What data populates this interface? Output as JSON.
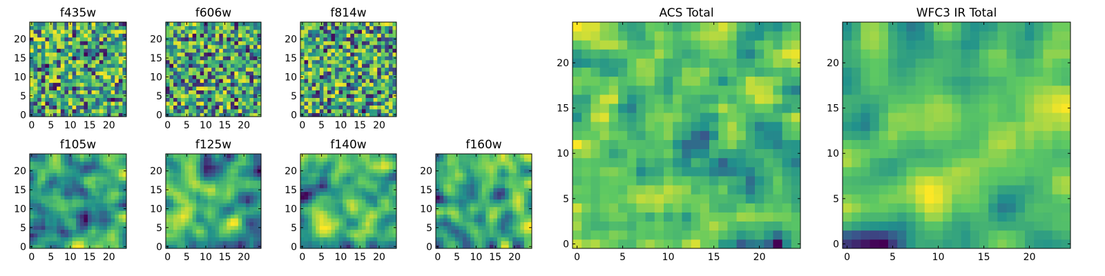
{
  "chart_data": [
    {
      "type": "heatmap",
      "title": "f435w",
      "nx": 25,
      "ny": 25,
      "xticks": [
        0,
        5,
        10,
        15,
        20
      ],
      "yticks": [
        0,
        5,
        10,
        15,
        20
      ],
      "smooth": 0.0,
      "seed": 11
    },
    {
      "type": "heatmap",
      "title": "f606w",
      "nx": 25,
      "ny": 25,
      "xticks": [
        0,
        5,
        10,
        15,
        20
      ],
      "yticks": [
        0,
        5,
        10,
        15,
        20
      ],
      "smooth": 0.0,
      "seed": 23
    },
    {
      "type": "heatmap",
      "title": "f814w",
      "nx": 25,
      "ny": 25,
      "xticks": [
        0,
        5,
        10,
        15,
        20
      ],
      "yticks": [
        0,
        5,
        10,
        15,
        20
      ],
      "smooth": 0.0,
      "seed": 37
    },
    {
      "type": "heatmap",
      "title": "f105w",
      "nx": 25,
      "ny": 25,
      "xticks": [
        0,
        5,
        10,
        15,
        20
      ],
      "yticks": [
        0,
        5,
        10,
        15,
        20
      ],
      "smooth": 0.6,
      "seed": 41
    },
    {
      "type": "heatmap",
      "title": "f125w",
      "nx": 25,
      "ny": 25,
      "xticks": [
        0,
        5,
        10,
        15,
        20
      ],
      "yticks": [
        0,
        5,
        10,
        15,
        20
      ],
      "smooth": 0.6,
      "seed": 53
    },
    {
      "type": "heatmap",
      "title": "f140w",
      "nx": 25,
      "ny": 25,
      "xticks": [
        0,
        5,
        10,
        15,
        20
      ],
      "yticks": [
        0,
        5,
        10,
        15,
        20
      ],
      "smooth": 0.7,
      "seed": 67
    },
    {
      "type": "heatmap",
      "title": "f160w",
      "nx": 25,
      "ny": 25,
      "xticks": [
        0,
        5,
        10,
        15,
        20
      ],
      "yticks": [
        0,
        5,
        10,
        15,
        20
      ],
      "smooth": 0.7,
      "seed": 79
    },
    {
      "type": "heatmap",
      "title": "ACS Total",
      "nx": 25,
      "ny": 25,
      "xticks": [
        0,
        5,
        10,
        15,
        20
      ],
      "yticks": [
        0,
        5,
        10,
        15,
        20
      ],
      "smooth": 0.2,
      "seed": 83
    },
    {
      "type": "heatmap",
      "title": "WFC3 IR Total",
      "nx": 25,
      "ny": 25,
      "xticks": [
        0,
        5,
        10,
        15,
        20
      ],
      "yticks": [
        0,
        5,
        10,
        15,
        20
      ],
      "smooth": 0.8,
      "seed": 97
    }
  ],
  "colormap": [
    "#440154",
    "#3b528b",
    "#21918c",
    "#5ec962",
    "#fde725"
  ]
}
